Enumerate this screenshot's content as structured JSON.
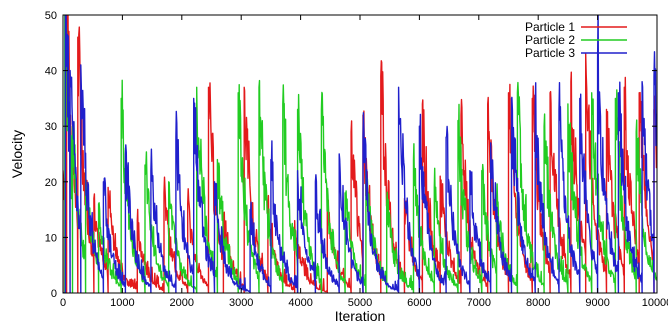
{
  "chart_data": {
    "type": "line",
    "title": "",
    "xlabel": "Iteration",
    "ylabel": "Velocity",
    "xlim": [
      0,
      10000
    ],
    "ylim": [
      0,
      50
    ],
    "x_ticks": [
      0,
      1000,
      2000,
      3000,
      4000,
      5000,
      6000,
      7000,
      8000,
      9000,
      10000
    ],
    "y_ticks": [
      0,
      10,
      20,
      30,
      40,
      50
    ],
    "x_tick_labels": [
      "0",
      "1000",
      "2000",
      "3000",
      "4000",
      "5000",
      "6000",
      "7000",
      "8000",
      "9000",
      "10000"
    ],
    "y_tick_labels": [
      "0",
      "10",
      "20",
      "30",
      "40",
      "50"
    ],
    "grid": false,
    "legend_position": "top-right",
    "decay_iterations": 140,
    "series": [
      {
        "name": "Particle 1",
        "color": "#e31a1c",
        "spikes": [
          [
            0,
            22
          ],
          [
            60,
            50
          ],
          [
            250,
            46
          ],
          [
            520,
            17
          ],
          [
            760,
            19
          ],
          [
            1250,
            13
          ],
          [
            1700,
            18
          ],
          [
            2100,
            16
          ],
          [
            2450,
            37
          ],
          [
            2700,
            13
          ],
          [
            3050,
            37
          ],
          [
            3450,
            15
          ],
          [
            3900,
            13
          ],
          [
            4450,
            17
          ],
          [
            4850,
            29
          ],
          [
            5050,
            32
          ],
          [
            5350,
            39
          ],
          [
            5750,
            17
          ],
          [
            6050,
            34
          ],
          [
            6350,
            21
          ],
          [
            6700,
            32
          ],
          [
            7150,
            34
          ],
          [
            7500,
            36
          ],
          [
            7900,
            35
          ],
          [
            8200,
            36
          ],
          [
            8550,
            38
          ],
          [
            8800,
            43
          ],
          [
            9150,
            33
          ],
          [
            9450,
            37
          ],
          [
            9700,
            36
          ],
          [
            9950,
            33
          ]
        ]
      },
      {
        "name": "Particle 2",
        "color": "#22cc22",
        "spikes": [
          [
            30,
            50
          ],
          [
            160,
            30
          ],
          [
            380,
            22
          ],
          [
            600,
            16
          ],
          [
            980,
            35
          ],
          [
            1380,
            23
          ],
          [
            1780,
            20
          ],
          [
            2250,
            37
          ],
          [
            2600,
            24
          ],
          [
            2950,
            36
          ],
          [
            3300,
            37
          ],
          [
            3700,
            34
          ],
          [
            3950,
            33
          ],
          [
            4350,
            33
          ],
          [
            4750,
            18
          ],
          [
            5100,
            22
          ],
          [
            5450,
            16
          ],
          [
            5900,
            24
          ],
          [
            6250,
            19
          ],
          [
            6650,
            31
          ],
          [
            7050,
            22
          ],
          [
            7300,
            17
          ],
          [
            7650,
            36
          ],
          [
            8100,
            30
          ],
          [
            8500,
            34
          ],
          [
            8900,
            36
          ],
          [
            9300,
            35
          ],
          [
            9650,
            29
          ]
        ]
      },
      {
        "name": "Particle 3",
        "color": "#2020cc",
        "spikes": [
          [
            40,
            50
          ],
          [
            120,
            40
          ],
          [
            300,
            41
          ],
          [
            680,
            20
          ],
          [
            1050,
            25
          ],
          [
            1480,
            22
          ],
          [
            1900,
            28
          ],
          [
            2200,
            35
          ],
          [
            2550,
            20
          ],
          [
            3150,
            15
          ],
          [
            3500,
            24
          ],
          [
            3950,
            22
          ],
          [
            4250,
            20
          ],
          [
            4650,
            25
          ],
          [
            5050,
            28
          ],
          [
            5650,
            37
          ],
          [
            6000,
            30
          ],
          [
            6450,
            28
          ],
          [
            6850,
            22
          ],
          [
            7200,
            27
          ],
          [
            7550,
            35
          ],
          [
            7950,
            34
          ],
          [
            8350,
            33
          ],
          [
            8700,
            35
          ],
          [
            9000,
            42
          ],
          [
            9350,
            36
          ],
          [
            9750,
            38
          ],
          [
            9950,
            39
          ]
        ]
      }
    ]
  }
}
